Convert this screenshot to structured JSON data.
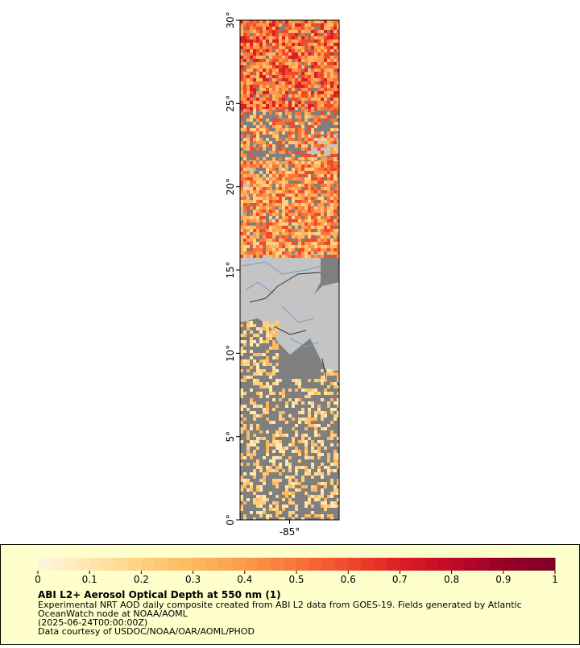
{
  "chart_data": {
    "type": "map",
    "title": "ABI L2+ Aerosol Optical Depth at 550 nm (1)",
    "notes": [
      "Experimental NRT AOD daily composite created from ABI L2 data from GOES-19. Fields generated by Atlantic",
      "OceanWatch node at NOAA/AOML",
      "(2025-06-24T00:00:00Z)",
      "Data courtesy of USDOC/NOAA/OAR/AOML/PHOD"
    ],
    "xlim": [
      -88,
      -82
    ],
    "xticks": [
      {
        "value": -85,
        "label": "-85°"
      }
    ],
    "ylim": [
      0,
      30
    ],
    "yticks": [
      {
        "value": 0,
        "label": "0°"
      },
      {
        "value": 5,
        "label": "5°"
      },
      {
        "value": 10,
        "label": "10°"
      },
      {
        "value": 15,
        "label": "15°"
      },
      {
        "value": 20,
        "label": "20°"
      },
      {
        "value": 25,
        "label": "25°"
      },
      {
        "value": 30,
        "label": "30°"
      }
    ],
    "colorbar": {
      "lim": [
        0,
        1
      ],
      "ticks": [
        0,
        0.1,
        0.2,
        0.3,
        0.4,
        0.5,
        0.6,
        0.7,
        0.8,
        0.9,
        1
      ],
      "colors": [
        "#fff5e0",
        "#ffe7b0",
        "#fed080",
        "#fdb860",
        "#fc9a4a",
        "#f9743a",
        "#ef4a2d",
        "#dd1e24",
        "#bf0a28",
        "#980026",
        "#800026"
      ]
    }
  }
}
